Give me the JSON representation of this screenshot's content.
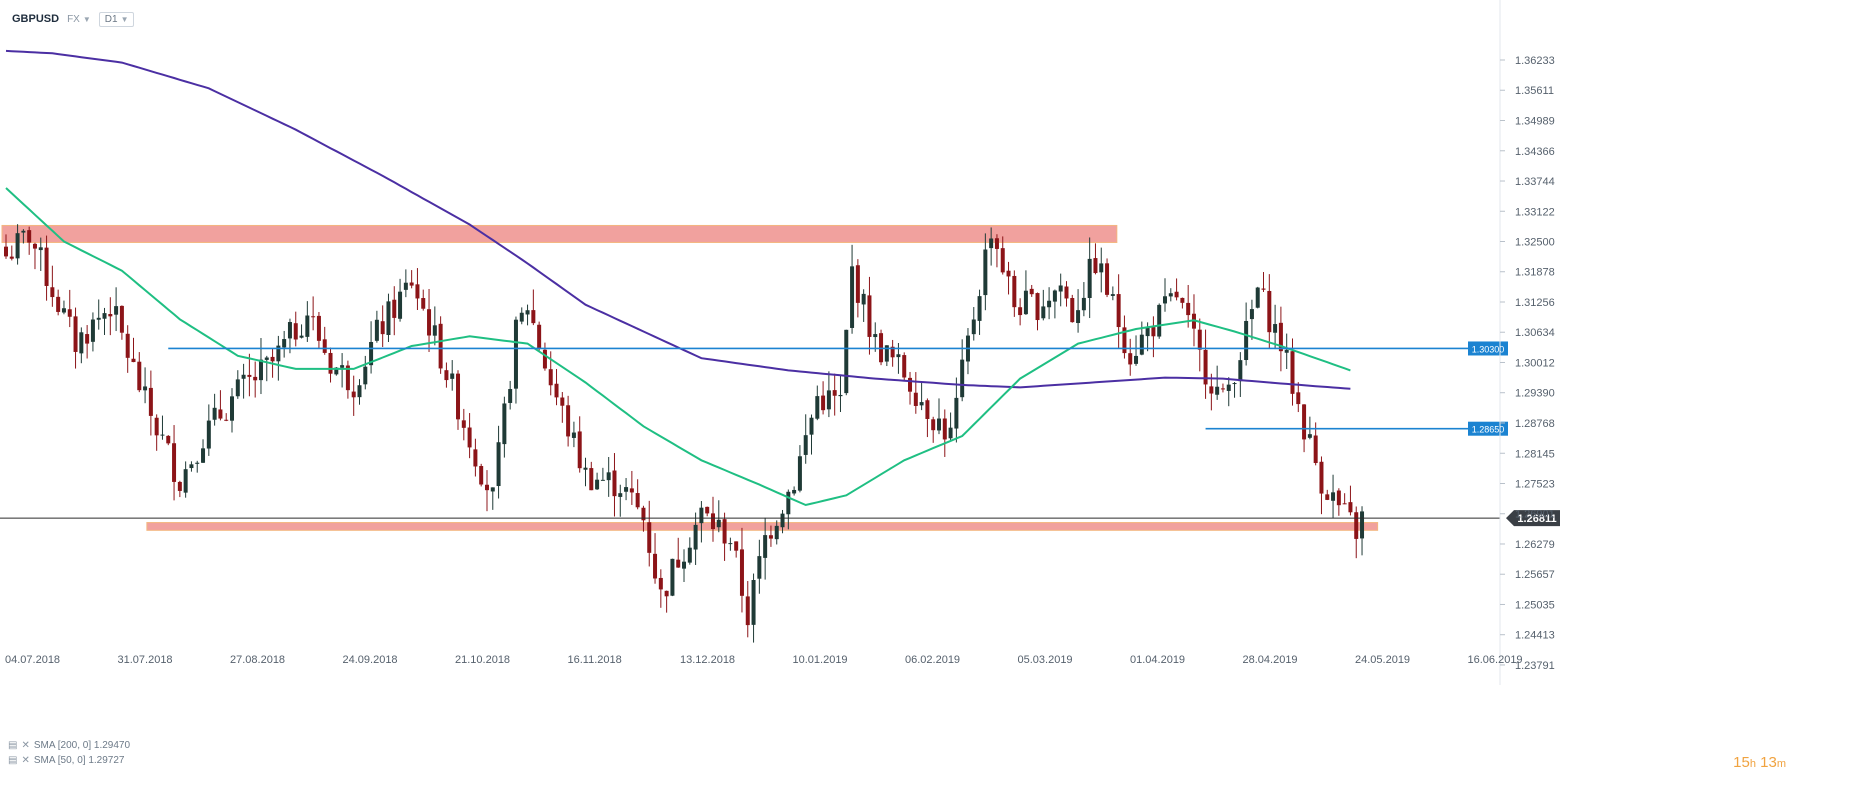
{
  "toolbar": {
    "symbol": "GBPUSD",
    "market": "FX",
    "timeframe": "D1"
  },
  "legend": {
    "sma200": "SMA [200,  0] 1.29470",
    "sma50": "SMA [50,  0] 1.29727"
  },
  "timer": {
    "hours": "15",
    "h_unit": "h",
    "minutes": "13",
    "m_unit": "m"
  },
  "colors": {
    "bull": "#1f3a36",
    "bear": "#8c1418",
    "sma200": "#4b2fa3",
    "sma50": "#1fbf83",
    "level": "#1b83d1",
    "zone": "#f19d99",
    "zone_edge": "#f3b37a",
    "axis_text": "#56616d"
  },
  "chart_data": {
    "type": "candlestick",
    "instrument": "GBPUSD",
    "timeframe": "D1",
    "ylim": [
      1.2379,
      1.3685
    ],
    "y_ticks": [
      "1.36233",
      "1.35611",
      "1.34989",
      "1.34366",
      "1.33744",
      "1.33122",
      "1.32500",
      "1.31878",
      "1.31256",
      "1.30634",
      "1.30012",
      "1.29390",
      "1.28768",
      "1.28145",
      "1.27523",
      "1.26901",
      "1.26279",
      "1.25657",
      "1.25035",
      "1.24413",
      "1.23791"
    ],
    "x_ticks": [
      "04.07.2018",
      "31.07.2018",
      "27.08.2018",
      "24.09.2018",
      "21.10.2018",
      "16.11.2018",
      "13.12.2018",
      "10.01.2019",
      "06.02.2019",
      "05.03.2019",
      "01.04.2019",
      "28.04.2019",
      "24.05.2019",
      "16.06.2019"
    ],
    "current_price": {
      "label": "1.26811",
      "value": 1.26811
    },
    "levels": [
      {
        "label": "1.30300",
        "value": 1.303,
        "from_index": 28
      },
      {
        "label": "1.28650",
        "value": 1.2865,
        "from_index": 207
      }
    ],
    "zones": [
      {
        "low": 1.3248,
        "high": 1.3283,
        "from_index": 0,
        "to_index": 191
      },
      {
        "low": 1.2656,
        "high": 1.2672,
        "from_index": 25,
        "to_index": 236
      }
    ],
    "sma200_anchors": [
      [
        0,
        1.3642
      ],
      [
        8,
        1.3637
      ],
      [
        20,
        1.3618
      ],
      [
        35,
        1.3565
      ],
      [
        50,
        1.348
      ],
      [
        65,
        1.3385
      ],
      [
        80,
        1.3285
      ],
      [
        90,
        1.3205
      ],
      [
        100,
        1.312
      ],
      [
        110,
        1.3065
      ],
      [
        120,
        1.301
      ],
      [
        135,
        1.2985
      ],
      [
        150,
        1.2968
      ],
      [
        165,
        1.2955
      ],
      [
        175,
        1.295
      ],
      [
        190,
        1.2962
      ],
      [
        200,
        1.297
      ],
      [
        210,
        1.2968
      ],
      [
        220,
        1.2958
      ],
      [
        232,
        1.2947
      ]
    ],
    "sma50_anchors": [
      [
        0,
        1.336
      ],
      [
        10,
        1.325
      ],
      [
        20,
        1.319
      ],
      [
        30,
        1.309
      ],
      [
        40,
        1.3015
      ],
      [
        50,
        1.2988
      ],
      [
        60,
        1.2988
      ],
      [
        70,
        1.3035
      ],
      [
        80,
        1.3055
      ],
      [
        90,
        1.304
      ],
      [
        100,
        1.296
      ],
      [
        110,
        1.287
      ],
      [
        120,
        1.28
      ],
      [
        130,
        1.275
      ],
      [
        138,
        1.2708
      ],
      [
        145,
        1.2728
      ],
      [
        155,
        1.28
      ],
      [
        165,
        1.285
      ],
      [
        175,
        1.2968
      ],
      [
        185,
        1.304
      ],
      [
        195,
        1.307
      ],
      [
        205,
        1.3088
      ],
      [
        212,
        1.3065
      ],
      [
        220,
        1.3035
      ],
      [
        232,
        1.2985
      ]
    ],
    "close_anchors": [
      [
        0,
        1.322
      ],
      [
        4,
        1.3265
      ],
      [
        8,
        1.315
      ],
      [
        12,
        1.304
      ],
      [
        18,
        1.312
      ],
      [
        24,
        1.292
      ],
      [
        30,
        1.276
      ],
      [
        34,
        1.285
      ],
      [
        40,
        1.294
      ],
      [
        46,
        1.3
      ],
      [
        52,
        1.3105
      ],
      [
        56,
        1.3
      ],
      [
        60,
        1.296
      ],
      [
        64,
        1.306
      ],
      [
        70,
        1.317
      ],
      [
        74,
        1.305
      ],
      [
        80,
        1.2845
      ],
      [
        84,
        1.272
      ],
      [
        88,
        1.306
      ],
      [
        90,
        1.312
      ],
      [
        94,
        1.296
      ],
      [
        100,
        1.277
      ],
      [
        106,
        1.275
      ],
      [
        110,
        1.268
      ],
      [
        113,
        1.252
      ],
      [
        116,
        1.26
      ],
      [
        120,
        1.269
      ],
      [
        125,
        1.264
      ],
      [
        128,
        1.248
      ],
      [
        131,
        1.264
      ],
      [
        136,
        1.276
      ],
      [
        140,
        1.293
      ],
      [
        144,
        1.292
      ],
      [
        146,
        1.319
      ],
      [
        150,
        1.304
      ],
      [
        155,
        1.298
      ],
      [
        160,
        1.289
      ],
      [
        163,
        1.285
      ],
      [
        166,
        1.304
      ],
      [
        170,
        1.328
      ],
      [
        174,
        1.312
      ],
      [
        178,
        1.312
      ],
      [
        182,
        1.316
      ],
      [
        184,
        1.31
      ],
      [
        188,
        1.321
      ],
      [
        190,
        1.315
      ],
      [
        194,
        1.302
      ],
      [
        198,
        1.308
      ],
      [
        202,
        1.314
      ],
      [
        206,
        1.301
      ],
      [
        210,
        1.292
      ],
      [
        214,
        1.306
      ],
      [
        216,
        1.315
      ],
      [
        220,
        1.304
      ],
      [
        224,
        1.287
      ],
      [
        227,
        1.276
      ],
      [
        231,
        1.2685
      ],
      [
        233,
        1.2655
      ],
      [
        234,
        1.2681
      ]
    ]
  }
}
